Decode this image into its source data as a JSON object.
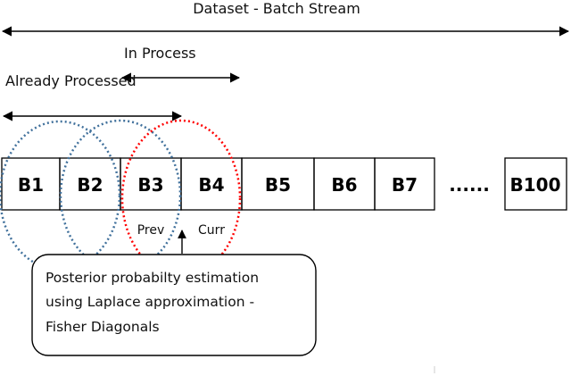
{
  "title": "Dataset - Batch Stream",
  "in_process_label": "In Process",
  "already_processed_label": "Already Processed",
  "batches": [
    "B1",
    "B2",
    "B3",
    "B4",
    "B5",
    "B6",
    "B7"
  ],
  "ellipsis": "......",
  "last_batch": "B100",
  "prev_label": "Prev",
  "curr_label": "Curr",
  "callout_lines": [
    "Posterior probabilty estimation",
    "using Laplace approximation -",
    "Fisher Diagonals"
  ],
  "colors": {
    "processed_circle": "#41719c",
    "current_circle": "#ff0000",
    "line": "#000000"
  }
}
